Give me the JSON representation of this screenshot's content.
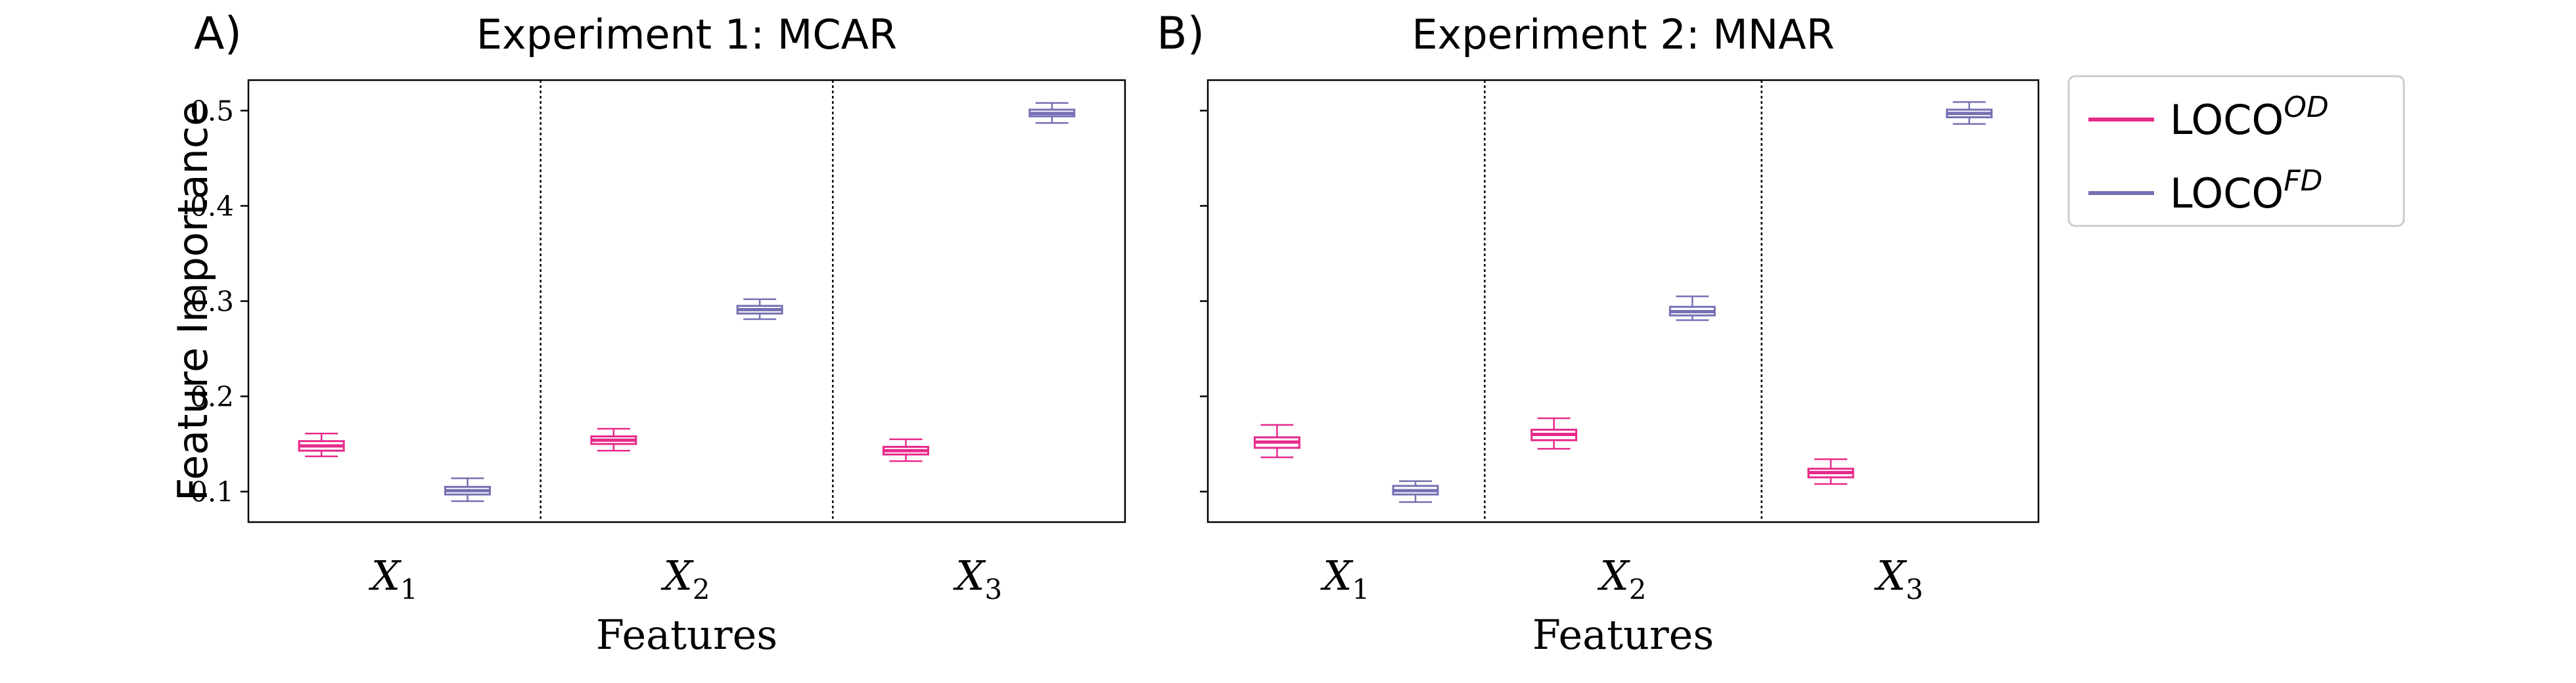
{
  "chart_data": [
    {
      "type": "boxplot",
      "panel_label": "A)",
      "title": "Experiment 1: MCAR",
      "xlabel": "Features",
      "ylabel": "Feature Importance",
      "ylim": [
        0.068,
        0.532
      ],
      "yticks": [
        0.1,
        0.2,
        0.3,
        0.4,
        0.5
      ],
      "ytick_labels": [
        "0.1",
        "0.2",
        "0.3",
        "0.4",
        "0.5"
      ],
      "categories": [
        "X1",
        "X2",
        "X3"
      ],
      "category_labels": [
        {
          "base": "X",
          "sub": "1"
        },
        {
          "base": "X",
          "sub": "2"
        },
        {
          "base": "X",
          "sub": "3"
        }
      ],
      "series": [
        {
          "name": "LOCO OD",
          "color": "#e7298a",
          "boxes": [
            {
              "whislo": 0.137,
              "q1": 0.143,
              "median": 0.148,
              "q3": 0.153,
              "whishi": 0.161
            },
            {
              "whislo": 0.143,
              "q1": 0.15,
              "median": 0.154,
              "q3": 0.158,
              "whishi": 0.166
            },
            {
              "whislo": 0.132,
              "q1": 0.139,
              "median": 0.143,
              "q3": 0.147,
              "whishi": 0.155
            }
          ]
        },
        {
          "name": "LOCO FD",
          "color": "#7570b3",
          "boxes": [
            {
              "whislo": 0.09,
              "q1": 0.097,
              "median": 0.101,
              "q3": 0.105,
              "whishi": 0.114
            },
            {
              "whislo": 0.281,
              "q1": 0.287,
              "median": 0.291,
              "q3": 0.295,
              "whishi": 0.302
            },
            {
              "whislo": 0.487,
              "q1": 0.494,
              "median": 0.497,
              "q3": 0.501,
              "whishi": 0.508
            }
          ]
        }
      ]
    },
    {
      "type": "boxplot",
      "panel_label": "B)",
      "title": "Experiment 2: MNAR",
      "xlabel": "Features",
      "ylabel": "",
      "ylim": [
        0.068,
        0.532
      ],
      "yticks": [
        0.1,
        0.2,
        0.3,
        0.4,
        0.5
      ],
      "ytick_labels": [],
      "categories": [
        "X1",
        "X2",
        "X3"
      ],
      "category_labels": [
        {
          "base": "X",
          "sub": "1"
        },
        {
          "base": "X",
          "sub": "2"
        },
        {
          "base": "X",
          "sub": "3"
        }
      ],
      "series": [
        {
          "name": "LOCO OD",
          "color": "#e7298a",
          "boxes": [
            {
              "whislo": 0.136,
              "q1": 0.146,
              "median": 0.152,
              "q3": 0.157,
              "whishi": 0.17
            },
            {
              "whislo": 0.145,
              "q1": 0.154,
              "median": 0.16,
              "q3": 0.165,
              "whishi": 0.177
            },
            {
              "whislo": 0.108,
              "q1": 0.115,
              "median": 0.12,
              "q3": 0.124,
              "whishi": 0.134
            }
          ]
        },
        {
          "name": "LOCO FD",
          "color": "#7570b3",
          "boxes": [
            {
              "whislo": 0.089,
              "q1": 0.097,
              "median": 0.101,
              "q3": 0.106,
              "whishi": 0.111
            },
            {
              "whislo": 0.28,
              "q1": 0.285,
              "median": 0.289,
              "q3": 0.294,
              "whishi": 0.305
            },
            {
              "whislo": 0.486,
              "q1": 0.493,
              "median": 0.497,
              "q3": 0.501,
              "whishi": 0.509
            }
          ]
        }
      ]
    }
  ],
  "legend": {
    "placement": "right",
    "entries": [
      {
        "base": "LOCO",
        "sup": "OD",
        "color": "#e7298a"
      },
      {
        "base": "LOCO",
        "sup": "FD",
        "color": "#7570b3"
      }
    ]
  }
}
